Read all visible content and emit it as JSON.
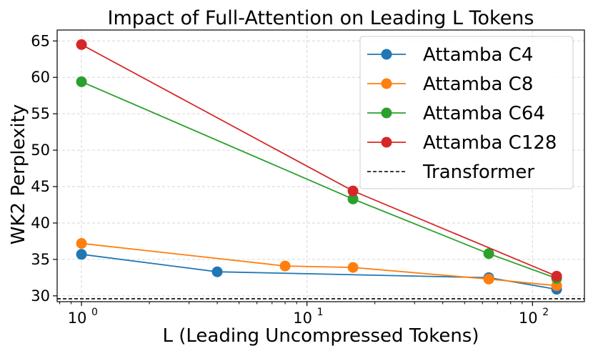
{
  "chart_data": {
    "type": "line",
    "title": "Impact of Full-Attention on Leading L Tokens",
    "xlabel": "L (Leading Uncompressed Tokens)",
    "ylabel": "WK2 Perplexity",
    "xscale": "log",
    "xlim": [
      0.78,
      170
    ],
    "ylim": [
      29.2,
      66.5
    ],
    "x_ticks": [
      {
        "value": 1,
        "base": "10",
        "exp": "0"
      },
      {
        "value": 10,
        "base": "10",
        "exp": "1"
      },
      {
        "value": 100,
        "base": "10",
        "exp": "2"
      }
    ],
    "y_ticks": [
      30,
      35,
      40,
      45,
      50,
      55,
      60,
      65
    ],
    "grid": true,
    "legend_position": "top-right",
    "series": [
      {
        "name": "Attamba C4",
        "color": "#1f77b4",
        "x": [
          1,
          4,
          64,
          128
        ],
        "values": [
          35.7,
          33.3,
          32.5,
          30.9
        ]
      },
      {
        "name": "Attamba C8",
        "color": "#ff7f0e",
        "x": [
          1,
          8,
          16,
          64,
          128
        ],
        "values": [
          37.2,
          34.1,
          33.9,
          32.3,
          31.4
        ]
      },
      {
        "name": "Attamba C64",
        "color": "#2ca02c",
        "x": [
          1,
          16,
          64,
          128
        ],
        "values": [
          59.4,
          43.3,
          35.8,
          32.4
        ]
      },
      {
        "name": "Attamba C128",
        "color": "#d62728",
        "x": [
          1,
          16,
          128
        ],
        "values": [
          64.5,
          44.4,
          32.7
        ]
      }
    ],
    "reference_lines": [
      {
        "name": "Transformer",
        "color": "#000000",
        "style": "dashed",
        "value": 29.6
      }
    ]
  }
}
